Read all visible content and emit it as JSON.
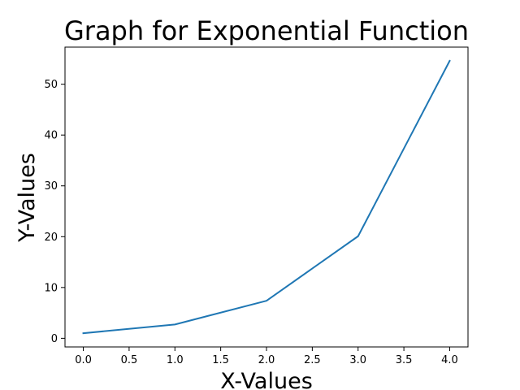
{
  "chart_data": {
    "type": "line",
    "title": "Graph for Exponential Function",
    "xlabel": "X-Values",
    "ylabel": "Y-Values",
    "xlim": [
      -0.2,
      4.2
    ],
    "ylim": [
      -1.7,
      57.3
    ],
    "x_ticks": [
      0.0,
      0.5,
      1.0,
      1.5,
      2.0,
      2.5,
      3.0,
      3.5,
      4.0
    ],
    "x_tick_labels": [
      "0.0",
      "0.5",
      "1.0",
      "1.5",
      "2.0",
      "2.5",
      "3.0",
      "3.5",
      "4.0"
    ],
    "y_ticks": [
      0,
      10,
      20,
      30,
      40,
      50
    ],
    "y_tick_labels": [
      "0",
      "10",
      "20",
      "30",
      "40",
      "50"
    ],
    "grid": false,
    "series": [
      {
        "x": [
          0,
          1,
          2,
          3,
          4
        ],
        "values": [
          1.0,
          2.718,
          7.389,
          20.086,
          54.598
        ],
        "color": "#1f77b4"
      }
    ]
  }
}
